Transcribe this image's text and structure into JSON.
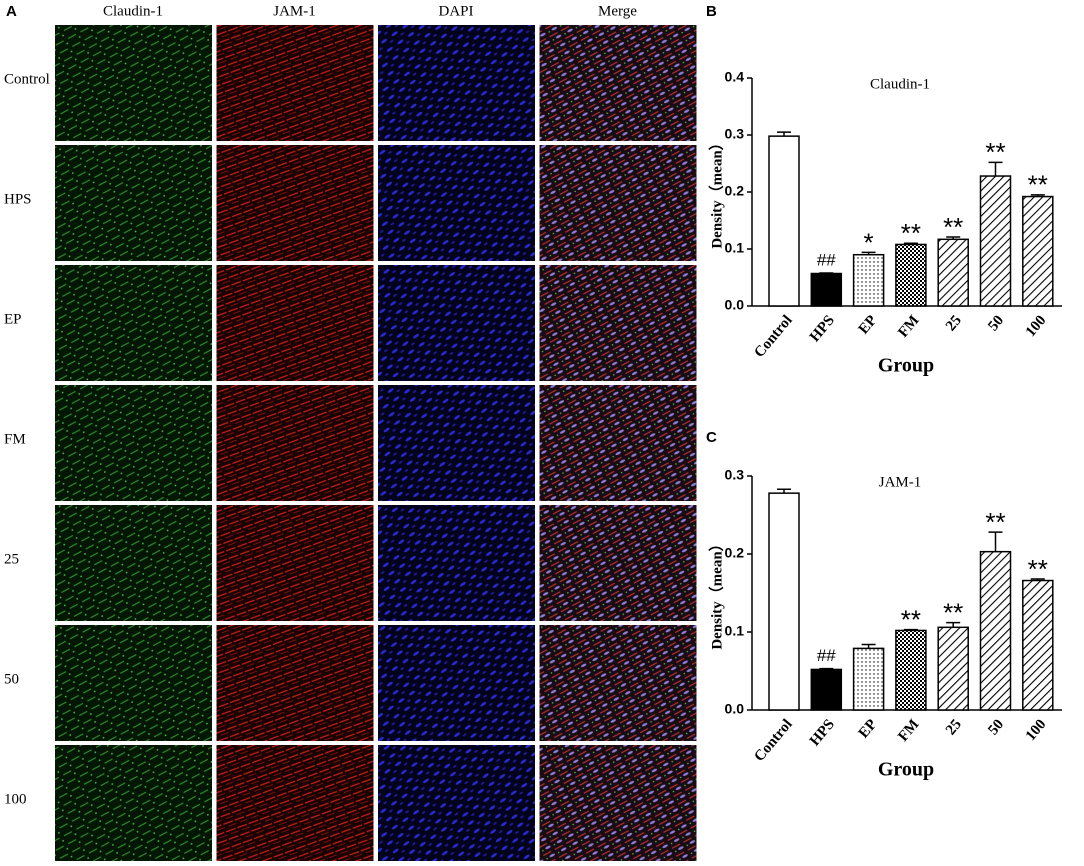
{
  "panel_a": {
    "label": "A",
    "columns": [
      "Claudin-1",
      "JAM-1",
      "DAPI",
      "Merge"
    ],
    "rows": [
      "Control",
      "HPS",
      "EP",
      "FM",
      "25",
      "50",
      "100"
    ]
  },
  "chart_data": [
    {
      "type": "bar",
      "panel_label": "B",
      "title": "Claudin-1",
      "ylabel": "Density（mean）",
      "xlabel": "Group",
      "categories": [
        "Control",
        "HPS",
        "EP",
        "FM",
        "25",
        "50",
        "100"
      ],
      "values": [
        0.298,
        0.057,
        0.09,
        0.108,
        0.117,
        0.228,
        0.192
      ],
      "errors": [
        0.007,
        0.001,
        0.004,
        0.002,
        0.004,
        0.024,
        0.003
      ],
      "annotations": [
        null,
        "##",
        "*",
        "**",
        "**",
        "**",
        "**"
      ],
      "fill_patterns": [
        "none",
        "solid",
        "dots",
        "grid",
        "diagonal",
        "diagonal",
        "diagonal"
      ],
      "color": "#000000",
      "ylim": [
        0,
        0.4
      ],
      "yticks": [
        {
          "value": 0,
          "label": "0.0"
        },
        0.1,
        0.2,
        0.3,
        0.4
      ]
    },
    {
      "type": "bar",
      "panel_label": "C",
      "title": "JAM-1",
      "ylabel": "Density（mean）",
      "xlabel": "Group",
      "categories": [
        "Control",
        "HPS",
        "EP",
        "FM",
        "25",
        "50",
        "100"
      ],
      "values": [
        0.278,
        0.052,
        0.079,
        0.102,
        0.106,
        0.203,
        0.166
      ],
      "errors": [
        0.005,
        0.001,
        0.005,
        0.001,
        0.006,
        0.025,
        0.002
      ],
      "annotations": [
        null,
        "##",
        null,
        "**",
        "**",
        "**",
        "**"
      ],
      "fill_patterns": [
        "none",
        "solid",
        "dots",
        "grid",
        "diagonal",
        "diagonal",
        "diagonal"
      ],
      "color": "#000000",
      "ylim": [
        0,
        0.3
      ],
      "yticks": [
        {
          "value": 0,
          "label": "0.0"
        },
        0.1,
        0.2,
        0.3
      ]
    }
  ]
}
